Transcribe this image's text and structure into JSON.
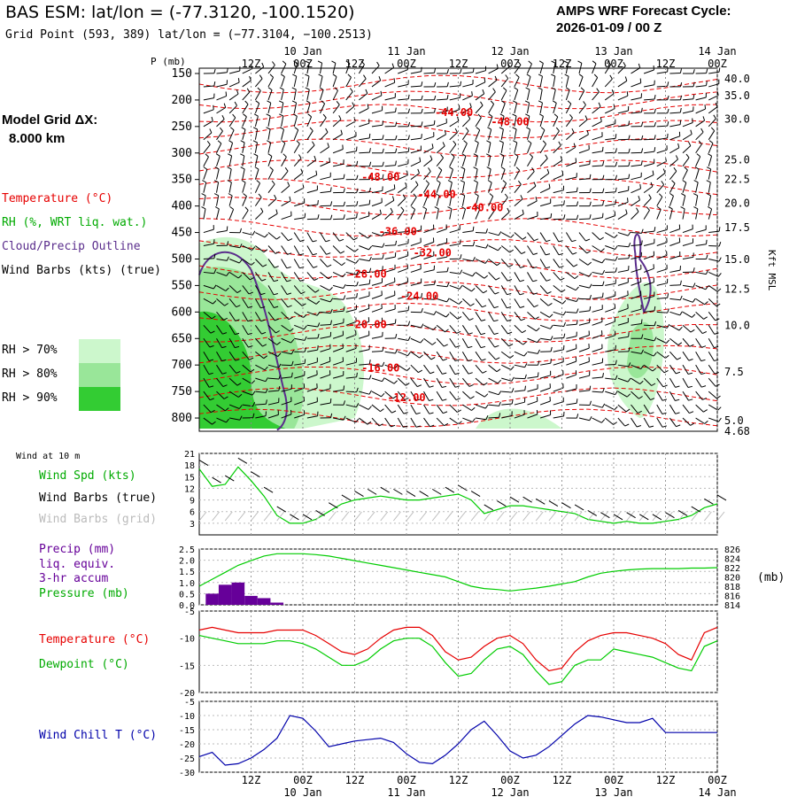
{
  "header": {
    "title": "BAS ESM:  lat/lon = (-77.3120, -100.1520)",
    "grid_point": "Grid Point (593, 389) lat/lon = (−77.3104, −100.2513)",
    "cycle_label": "AMPS WRF Forecast Cycle:",
    "cycle_value": "2026-01-09 / 00  Z"
  },
  "model_grid": {
    "label": "Model Grid ΔX:",
    "value": "8.000 km"
  },
  "legend": {
    "temperature": "Temperature (°C)",
    "rh": "RH (%, WRT liq. wat.)",
    "cloud": "Cloud/Precip Outline",
    "wind_barbs": "Wind Barbs (kts) (true)",
    "rh_levels": [
      {
        "label": "RH > 70%",
        "color": "#ccf7cc"
      },
      {
        "label": "RH > 80%",
        "color": "#99e699"
      },
      {
        "label": "RH > 90%",
        "color": "#33cc33"
      }
    ]
  },
  "colors": {
    "temperature": "#e60000",
    "dewpoint": "#00cc00",
    "precip": "#660099",
    "windchill": "#0000aa",
    "cloud": "#5a2d8c",
    "grid": "#999999"
  },
  "time_axis": {
    "tick_labels": [
      "12Z",
      "00Z",
      "12Z",
      "00Z",
      "12Z",
      "00Z",
      "12Z",
      "00Z",
      "12Z",
      "00Z"
    ],
    "tick_hours": [
      12,
      24,
      36,
      48,
      60,
      72,
      84,
      96,
      108,
      120
    ],
    "date_labels": [
      "10 Jan",
      "11 Jan",
      "12 Jan",
      "13 Jan",
      "14 Jan"
    ],
    "date_hours": [
      24,
      48,
      72,
      96,
      120
    ],
    "range_hours": [
      0,
      120
    ]
  },
  "panels": {
    "pressure_label": "P (mb)",
    "height_label": "Kft MSL",
    "wind10m_title": "Wind at 10 m",
    "wind_spd_label": "Wind Spd (kts)",
    "wind_barbs_true": "Wind Barbs (true)",
    "wind_barbs_grid": "Wind Barbs (grid)",
    "precip_label": "Precip (mm)",
    "precip_sub1": "liq. equiv.",
    "precip_sub2": "3-hr accum",
    "pressure_series_label": "Pressure (mb)",
    "mb_unit": "(mb)",
    "temp_label": "Temperature (°C)",
    "dewpoint_label": "Dewpoint (°C)",
    "windchill_label": "Wind Chill T (°C)"
  },
  "chart_data": [
    {
      "type": "heatmap",
      "title": "Vertical cross-section",
      "ylabel": "P (mb)",
      "y_ticks": [
        150,
        200,
        250,
        300,
        350,
        400,
        450,
        500,
        550,
        600,
        650,
        700,
        750,
        800
      ],
      "ylim": [
        825,
        140
      ],
      "height_ticks_kft": [
        "40.0",
        "35.0",
        "30.0",
        "25.0",
        "22.5",
        "20.0",
        "17.5",
        "15.0",
        "12.5",
        "10.0",
        "7.5",
        "5.0",
        "4.68"
      ],
      "height_tick_pressures": [
        160,
        192,
        236,
        313,
        350,
        395,
        441,
        501,
        557,
        625,
        713,
        805,
        825
      ],
      "isotherm_labels": [
        {
          "text": "-44.00",
          "hour": 59,
          "p": 230
        },
        {
          "text": "-48.00",
          "hour": 72,
          "p": 248
        },
        {
          "text": "-48.00",
          "hour": 42,
          "p": 352
        },
        {
          "text": "-44.00",
          "hour": 55,
          "p": 385
        },
        {
          "text": "-40.00",
          "hour": 66,
          "p": 410
        },
        {
          "text": "-36.00",
          "hour": 46,
          "p": 455
        },
        {
          "text": "-32.00",
          "hour": 54,
          "p": 495
        },
        {
          "text": "-28.00",
          "hour": 39,
          "p": 535
        },
        {
          "text": "-24.00",
          "hour": 51,
          "p": 577
        },
        {
          "text": "-20.00",
          "hour": 39,
          "p": 630
        },
        {
          "text": "-16.00",
          "hour": 42,
          "p": 712
        },
        {
          "text": "-12.00",
          "hour": 48,
          "p": 768
        }
      ]
    },
    {
      "type": "line",
      "title": "Wind at 10 m",
      "ylabel": "Wind Spd (kts)",
      "ylim": [
        0,
        21
      ],
      "y_ticks": [
        3,
        6,
        9,
        12,
        15,
        18,
        21
      ],
      "x": [
        0,
        3,
        6,
        9,
        12,
        15,
        18,
        21,
        24,
        27,
        30,
        33,
        36,
        39,
        42,
        45,
        48,
        51,
        54,
        57,
        60,
        63,
        66,
        69,
        72,
        75,
        78,
        81,
        84,
        87,
        90,
        93,
        96,
        99,
        102,
        105,
        108,
        111,
        114,
        117,
        120
      ],
      "series": [
        {
          "name": "Wind Spd (kts)",
          "values": [
            17,
            12.5,
            13,
            17.5,
            14,
            10,
            5,
            3,
            3,
            4,
            6,
            8,
            9,
            9.5,
            10,
            9.5,
            9,
            9,
            9.5,
            10,
            10.5,
            9,
            5.5,
            6.5,
            7.5,
            7.5,
            7,
            6.5,
            6,
            5.5,
            4,
            3.5,
            3,
            3.5,
            3,
            3,
            3.5,
            4,
            5,
            7,
            8
          ]
        }
      ]
    },
    {
      "type": "line",
      "title": "Precip / Pressure",
      "ylim_precip": [
        0,
        2.5
      ],
      "ylim_pressure": [
        814,
        826
      ],
      "y_ticks_left": [
        "0.0",
        "0.5",
        "1.0",
        "1.5",
        "2.0",
        "2.5"
      ],
      "y_ticks_right": [
        "814",
        "816",
        "818",
        "820",
        "822",
        "824",
        "826"
      ],
      "x": [
        0,
        3,
        6,
        9,
        12,
        15,
        18,
        21,
        24,
        27,
        30,
        33,
        36,
        39,
        42,
        45,
        48,
        51,
        54,
        57,
        60,
        63,
        66,
        69,
        72,
        75,
        78,
        81,
        84,
        87,
        90,
        93,
        96,
        99,
        102,
        105,
        108,
        111,
        114,
        117,
        120
      ],
      "series": [
        {
          "name": "Pressure (mb)",
          "values": [
            818,
            819.5,
            821,
            822.5,
            823.5,
            824.5,
            825,
            825,
            825,
            824.8,
            824.5,
            824,
            823.5,
            823,
            822.5,
            822,
            821.5,
            821,
            820.5,
            820,
            819,
            818,
            817.5,
            817.3,
            817,
            817.3,
            817.6,
            818,
            818.5,
            819,
            820,
            820.8,
            821.2,
            821.5,
            821.7,
            821.8,
            821.8,
            821.8,
            821.9,
            821.9,
            822
          ]
        },
        {
          "name": "Precip (mm)",
          "bars": [
            {
              "hour": 3,
              "value": 0.5
            },
            {
              "hour": 6,
              "value": 0.9
            },
            {
              "hour": 9,
              "value": 1.0
            },
            {
              "hour": 12,
              "value": 0.4
            },
            {
              "hour": 15,
              "value": 0.3
            },
            {
              "hour": 18,
              "value": 0.1
            }
          ]
        }
      ]
    },
    {
      "type": "line",
      "title": "Temperature / Dewpoint",
      "ylim": [
        -20,
        -5
      ],
      "y_ticks": [
        -20,
        -15,
        -10,
        -5
      ],
      "x": [
        0,
        3,
        6,
        9,
        12,
        15,
        18,
        21,
        24,
        27,
        30,
        33,
        36,
        39,
        42,
        45,
        48,
        51,
        54,
        57,
        60,
        63,
        66,
        69,
        72,
        75,
        78,
        81,
        84,
        87,
        90,
        93,
        96,
        99,
        102,
        105,
        108,
        111,
        114,
        117,
        120
      ],
      "series": [
        {
          "name": "Temperature (°C)",
          "values": [
            -8.5,
            -8,
            -8.5,
            -9,
            -9,
            -9,
            -8.5,
            -8.5,
            -8.5,
            -9.5,
            -11,
            -12.5,
            -13,
            -12,
            -10,
            -8.5,
            -8,
            -8,
            -9.5,
            -12.5,
            -14,
            -13.5,
            -11.5,
            -10,
            -9.5,
            -11,
            -14,
            -16,
            -15.5,
            -12.5,
            -10.5,
            -9.5,
            -9,
            -9,
            -9.5,
            -10,
            -11,
            -13,
            -14,
            -9,
            -8
          ]
        },
        {
          "name": "Dewpoint (°C)",
          "values": [
            -9.5,
            -10,
            -10.5,
            -11,
            -11,
            -11,
            -10.5,
            -10.5,
            -11,
            -12,
            -13.5,
            -15,
            -15,
            -14,
            -12,
            -10.5,
            -10,
            -10,
            -11.5,
            -14.5,
            -17,
            -16.5,
            -14,
            -12,
            -11.5,
            -13,
            -16,
            -18.5,
            -18,
            -15,
            -14,
            -14,
            -12,
            -12.5,
            -13,
            -13.5,
            -14.5,
            -15.5,
            -16,
            -11.5,
            -10.5
          ]
        }
      ]
    },
    {
      "type": "line",
      "title": "Wind Chill",
      "ylim": [
        -30,
        -5
      ],
      "y_ticks": [
        -30,
        -25,
        -20,
        -15,
        -10,
        -5
      ],
      "x": [
        0,
        3,
        6,
        9,
        12,
        15,
        18,
        21,
        24,
        27,
        30,
        33,
        36,
        39,
        42,
        45,
        48,
        51,
        54,
        57,
        60,
        63,
        66,
        69,
        72,
        75,
        78,
        81,
        84,
        87,
        90,
        93,
        96,
        99,
        102,
        105,
        108,
        111,
        114,
        117,
        120
      ],
      "series": [
        {
          "name": "Wind Chill T (°C)",
          "values": [
            -24.5,
            -23,
            -27.5,
            -27,
            -25,
            -22,
            -18,
            -10,
            -11,
            -15.5,
            -21,
            -20,
            -19,
            -18.5,
            -18,
            -19.5,
            -23.5,
            -26.5,
            -27,
            -24,
            -20,
            -15,
            -12,
            -17,
            -22.5,
            -25,
            -24,
            -21,
            -17,
            -13,
            -10,
            -10.5,
            -11.5,
            -12.5,
            -12.5,
            -11,
            -16,
            -16,
            -16,
            -16,
            -16
          ]
        }
      ]
    }
  ]
}
